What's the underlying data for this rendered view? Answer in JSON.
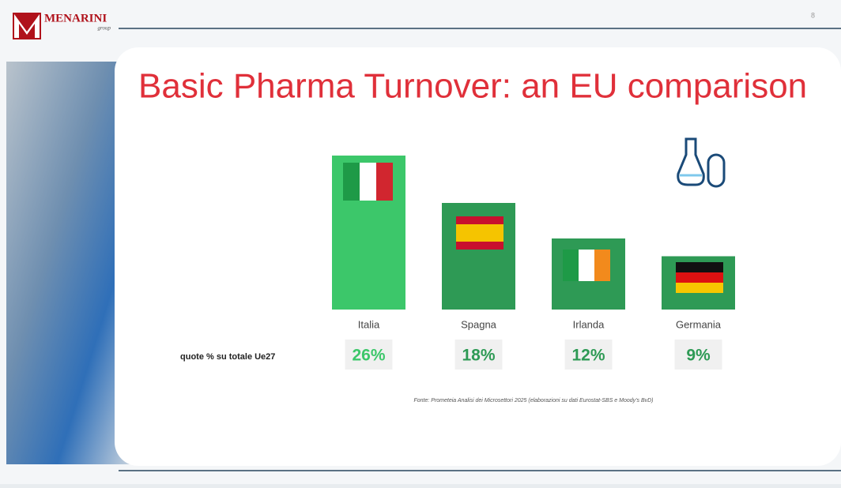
{
  "brand": "MENARINI",
  "brand_sub": "group",
  "page_number": "8",
  "chart_data": {
    "type": "bar",
    "title": "Basic Pharma Turnover: an EU comparison",
    "categories": [
      "Italia",
      "Spagna",
      "Irlanda",
      "Germania"
    ],
    "values": [
      26,
      18,
      12,
      9
    ],
    "value_labels": [
      "26%",
      "18%",
      "12%",
      "9%"
    ],
    "colors": [
      "#3cc76a",
      "#2e9a55",
      "#2e9a55",
      "#2e9a55"
    ],
    "row_label": "quote % su totale Ue27",
    "source": "Fonte: Prometeia Analisi dei Microsettori 2025 (elaborazioni su dati Eurostat-SBS e Moody's BvD)"
  }
}
